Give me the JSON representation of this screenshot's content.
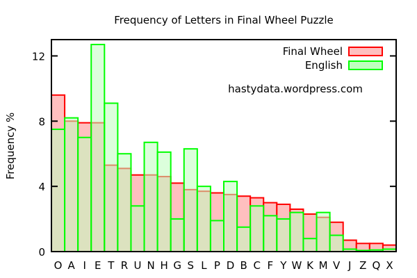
{
  "chart_data": {
    "type": "bar",
    "title": "Frequency of Letters in Final Wheel Puzzle",
    "xlabel": "",
    "ylabel": "Frequency %",
    "ylim": [
      0,
      13
    ],
    "yticks": [
      0,
      4,
      8,
      12
    ],
    "grid": false,
    "legend_position": "top-right",
    "annotation": "hastydata.wordpress.com",
    "annotation_color": "#0000ee",
    "categories": [
      "O",
      "A",
      "I",
      "E",
      "T",
      "R",
      "U",
      "N",
      "H",
      "G",
      "S",
      "L",
      "P",
      "D",
      "B",
      "C",
      "F",
      "Y",
      "W",
      "K",
      "M",
      "V",
      "J",
      "Z",
      "Q",
      "X"
    ],
    "series": [
      {
        "name": "Final Wheel",
        "stroke": "#ff0000",
        "fill": "#ffbfbf",
        "values": [
          9.6,
          8.0,
          7.9,
          7.9,
          5.3,
          5.1,
          4.7,
          4.7,
          4.6,
          4.2,
          3.8,
          3.7,
          3.6,
          3.5,
          3.4,
          3.3,
          3.0,
          2.9,
          2.6,
          2.3,
          2.1,
          1.8,
          0.7,
          0.5,
          0.5,
          0.4
        ]
      },
      {
        "name": "English",
        "stroke": "#00ff00",
        "fill": "#bfffbf",
        "values": [
          7.5,
          8.2,
          7.0,
          12.7,
          9.1,
          6.0,
          2.8,
          6.7,
          6.1,
          2.0,
          6.3,
          4.0,
          1.9,
          4.3,
          1.5,
          2.8,
          2.2,
          2.0,
          2.4,
          0.8,
          2.4,
          1.0,
          0.15,
          0.07,
          0.1,
          0.15
        ]
      }
    ]
  }
}
